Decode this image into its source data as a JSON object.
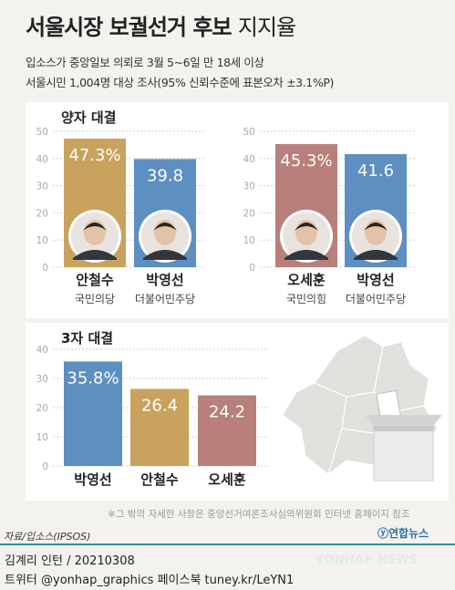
{
  "title": {
    "main": "서울시장 보궐선거 후보",
    "sub": "지지율"
  },
  "source_lines": [
    "입소스가 중앙일보 의뢰로 3월 5~6일 만 18세 이상",
    "서울시민 1,004명 대상 조사(95% 신뢰수준에 표본오차 ±3.1%P)"
  ],
  "sections": {
    "two_way": "양자 대결",
    "three_way": "3자 대결"
  },
  "colors": {
    "gold": "#c9a25e",
    "blue": "#5d8fc1",
    "red": "#b87f7b"
  },
  "chart_data": [
    {
      "type": "bar",
      "title": "양자 대결",
      "categories": [
        "안철수",
        "박영선"
      ],
      "parties": [
        "국민의당",
        "더불어민주당"
      ],
      "value_labels": [
        "47.3%",
        "39.8"
      ],
      "values": [
        47.3,
        39.8
      ],
      "colors": [
        "#c9a25e",
        "#5d8fc1"
      ],
      "ylim": [
        0,
        50
      ],
      "yticks": [
        0,
        10,
        20,
        30,
        40,
        50
      ]
    },
    {
      "type": "bar",
      "title": "양자 대결",
      "categories": [
        "오세훈",
        "박영선"
      ],
      "parties": [
        "국민의힘",
        "더불어민주당"
      ],
      "value_labels": [
        "45.3%",
        "41.6"
      ],
      "values": [
        45.3,
        41.6
      ],
      "colors": [
        "#b87f7b",
        "#5d8fc1"
      ],
      "ylim": [
        0,
        50
      ],
      "yticks": [
        0,
        10,
        20,
        30,
        40,
        50
      ]
    },
    {
      "type": "bar",
      "title": "3자 대결",
      "categories": [
        "박영선",
        "안철수",
        "오세훈"
      ],
      "value_labels": [
        "35.8%",
        "26.4",
        "24.2"
      ],
      "values": [
        35.8,
        26.4,
        24.2
      ],
      "colors": [
        "#5d8fc1",
        "#c9a25e",
        "#b87f7b"
      ],
      "ylim": [
        0,
        40
      ],
      "yticks": [
        0,
        10,
        20,
        30,
        40
      ]
    }
  ],
  "note": "※그 밖의 자세한 사항은 중앙선거여론조사심의위원회 인터넷 홈페이지 참조",
  "credit": "자료/입소스(IPSOS)",
  "brand": "연합뉴스",
  "footer": {
    "author": "김계리 인턴 / 20210308",
    "social": "트위터 @yonhap_graphics  페이스북 tuney.kr/LeYN1",
    "watermark": "YONHAP NEWS"
  }
}
